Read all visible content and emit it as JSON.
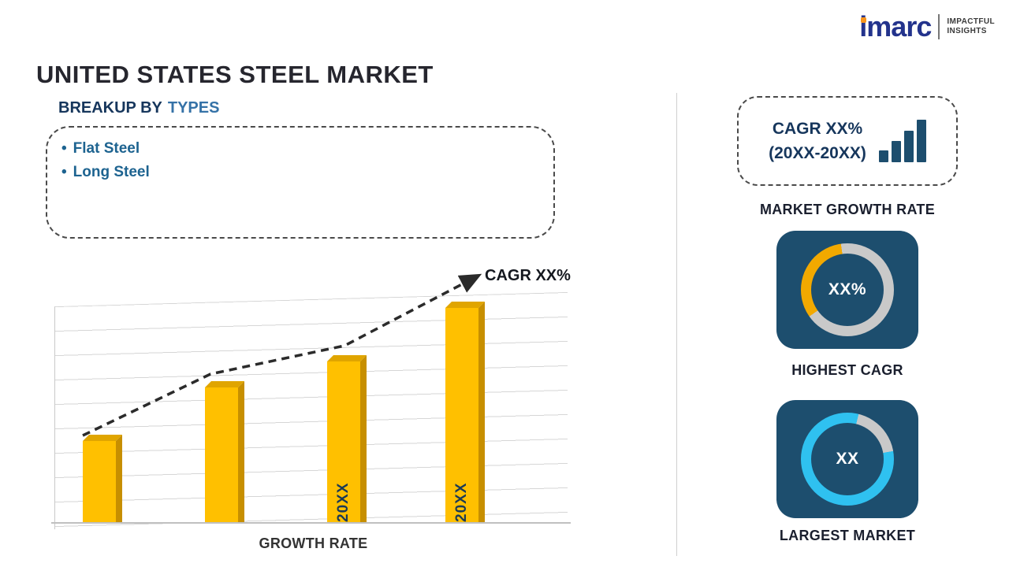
{
  "logo": {
    "brand": "imarc",
    "tagline_line1": "IMPACTFUL",
    "tagline_line2": "INSIGHTS"
  },
  "title": "UNITED STATES STEEL MARKET",
  "breakup": {
    "heading_prefix": "BREAKUP BY",
    "heading_highlight": "TYPES",
    "items": [
      "Flat Steel",
      "Long Steel"
    ]
  },
  "chart_data": {
    "type": "bar",
    "categories": [
      "",
      "",
      "20XX",
      "20XX"
    ],
    "values": [
      38,
      63,
      75,
      100
    ],
    "values_note": "y-axis unlabeled; values are relative bar heights estimated from pixels",
    "xlabel": "GROWTH RATE",
    "ylabel": "",
    "ylim": [
      0,
      100
    ],
    "grid": "horizontal",
    "bar_color": "#FFC000",
    "trend_label": "CAGR XX%",
    "trend_style": "dashed-arrow-up"
  },
  "right_panel": {
    "growth_box": {
      "line1": "CAGR XX%",
      "line2": "(20XX-20XX)",
      "icon": "ascending-bar-chart-icon"
    },
    "growth_label": "MARKET GROWTH RATE",
    "highest_cagr": {
      "value": "XX%",
      "label": "HIGHEST CAGR",
      "arc_color": "#F2A900"
    },
    "largest_market": {
      "value": "XX",
      "label": "LARGEST MARKET",
      "arc_color": "#2FC1F0"
    }
  },
  "colors": {
    "card_navy": "#1D4E6E",
    "bar_gold": "#FFC000",
    "donut_gray": "#C9C9C9",
    "accent_orange": "#F7941D",
    "heading_blue": "#3572A7",
    "text_navy": "#16365C"
  }
}
